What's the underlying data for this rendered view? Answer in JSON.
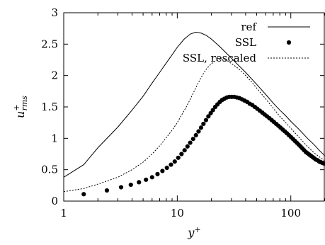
{
  "chart_data": {
    "type": "line",
    "xlabel": "y",
    "xlabel_sup": "+",
    "ylabel": "u",
    "ylabel_sup": "+",
    "ylabel_sub": "rms",
    "x_scale": "log",
    "xlim": [
      1,
      200
    ],
    "ylim": [
      0,
      3
    ],
    "x_ticks": [
      1,
      10,
      100
    ],
    "x_tick_labels": [
      "1",
      "10",
      "100"
    ],
    "y_ticks": [
      0,
      0.5,
      1,
      1.5,
      2,
      2.5,
      3
    ],
    "y_tick_labels": [
      "0",
      "0.5",
      "1",
      "1.5",
      "2",
      "2.5",
      "3"
    ],
    "grid": false,
    "legend_position": "top-right",
    "series": [
      {
        "name": "ref",
        "style": "solid",
        "color": "#000000",
        "points": [
          [
            1,
            0.38
          ],
          [
            1.5,
            0.58
          ],
          [
            2,
            0.85
          ],
          [
            3,
            1.18
          ],
          [
            4,
            1.45
          ],
          [
            5,
            1.67
          ],
          [
            6,
            1.88
          ],
          [
            7,
            2.05
          ],
          [
            8,
            2.2
          ],
          [
            9,
            2.33
          ],
          [
            10,
            2.45
          ],
          [
            11.5,
            2.58
          ],
          [
            13,
            2.66
          ],
          [
            14.5,
            2.69
          ],
          [
            16,
            2.68
          ],
          [
            18,
            2.64
          ],
          [
            20,
            2.58
          ],
          [
            24,
            2.45
          ],
          [
            28,
            2.33
          ],
          [
            33,
            2.2
          ],
          [
            40,
            2.05
          ],
          [
            50,
            1.86
          ],
          [
            60,
            1.7
          ],
          [
            70,
            1.56
          ],
          [
            80,
            1.45
          ],
          [
            90,
            1.36
          ],
          [
            100,
            1.27
          ],
          [
            120,
            1.13
          ],
          [
            140,
            1.0
          ],
          [
            160,
            0.9
          ],
          [
            180,
            0.8
          ],
          [
            200,
            0.72
          ]
        ]
      },
      {
        "name": "SSL",
        "style": "points",
        "color": "#000000",
        "points": [
          [
            1.5,
            0.11
          ],
          [
            2.4,
            0.17
          ],
          [
            3.2,
            0.22
          ],
          [
            3.9,
            0.26
          ],
          [
            4.6,
            0.3
          ],
          [
            5.3,
            0.34
          ],
          [
            6.0,
            0.38
          ],
          [
            6.7,
            0.43
          ],
          [
            7.4,
            0.48
          ],
          [
            8.1,
            0.53
          ],
          [
            8.8,
            0.58
          ],
          [
            9.5,
            0.63
          ],
          [
            10.2,
            0.69
          ],
          [
            10.9,
            0.75
          ],
          [
            11.6,
            0.81
          ],
          [
            12.3,
            0.87
          ],
          [
            13.0,
            0.93
          ],
          [
            13.8,
            0.99
          ],
          [
            14.6,
            1.05
          ],
          [
            15.4,
            1.11
          ],
          [
            16.2,
            1.17
          ],
          [
            17.0,
            1.23
          ],
          [
            17.9,
            1.29
          ],
          [
            18.8,
            1.35
          ],
          [
            19.7,
            1.4
          ],
          [
            20.6,
            1.45
          ],
          [
            21.6,
            1.5
          ],
          [
            22.6,
            1.54
          ],
          [
            23.7,
            1.58
          ],
          [
            24.8,
            1.61
          ],
          [
            26.0,
            1.63
          ],
          [
            27.3,
            1.65
          ],
          [
            28.7,
            1.66
          ],
          [
            30.2,
            1.66
          ],
          [
            31.8,
            1.66
          ],
          [
            33.5,
            1.65
          ],
          [
            35.3,
            1.64
          ],
          [
            37.2,
            1.62
          ],
          [
            39.2,
            1.6
          ],
          [
            41.3,
            1.58
          ],
          [
            43.5,
            1.55
          ],
          [
            45.8,
            1.53
          ],
          [
            48.2,
            1.5
          ],
          [
            50.7,
            1.47
          ],
          [
            53.3,
            1.44
          ],
          [
            56.0,
            1.41
          ],
          [
            58.8,
            1.38
          ],
          [
            61.7,
            1.35
          ],
          [
            64.7,
            1.32
          ],
          [
            67.8,
            1.29
          ],
          [
            71.0,
            1.26
          ],
          [
            74.3,
            1.23
          ],
          [
            77.7,
            1.2
          ],
          [
            81.2,
            1.17
          ],
          [
            84.8,
            1.14
          ],
          [
            88.5,
            1.11
          ],
          [
            92.3,
            1.08
          ],
          [
            96.2,
            1.05
          ],
          [
            100.2,
            1.02
          ],
          [
            104.3,
            0.99
          ],
          [
            108.5,
            0.96
          ],
          [
            112.8,
            0.93
          ],
          [
            117.2,
            0.9
          ],
          [
            121.7,
            0.87
          ],
          [
            126.3,
            0.84
          ],
          [
            131.0,
            0.81
          ],
          [
            135.8,
            0.78
          ],
          [
            140.7,
            0.76
          ],
          [
            145.7,
            0.74
          ],
          [
            150.8,
            0.72
          ],
          [
            156.0,
            0.7
          ],
          [
            161.3,
            0.68
          ],
          [
            166.7,
            0.66
          ],
          [
            172.2,
            0.65
          ],
          [
            177.8,
            0.63
          ],
          [
            183.5,
            0.62
          ],
          [
            189.3,
            0.61
          ],
          [
            195.2,
            0.6
          ],
          [
            200.0,
            0.6
          ]
        ]
      },
      {
        "name": "SSL, rescaled",
        "style": "dotted",
        "color": "#000000",
        "points": [
          [
            1,
            0.15
          ],
          [
            1.5,
            0.2
          ],
          [
            2,
            0.27
          ],
          [
            3,
            0.38
          ],
          [
            4,
            0.5
          ],
          [
            5,
            0.62
          ],
          [
            6,
            0.75
          ],
          [
            7,
            0.88
          ],
          [
            8,
            1.01
          ],
          [
            9,
            1.13
          ],
          [
            10,
            1.25
          ],
          [
            11,
            1.38
          ],
          [
            12,
            1.5
          ],
          [
            13,
            1.62
          ],
          [
            14,
            1.74
          ],
          [
            15,
            1.85
          ],
          [
            16,
            1.95
          ],
          [
            17,
            2.03
          ],
          [
            18,
            2.1
          ],
          [
            19,
            2.15
          ],
          [
            20,
            2.19
          ],
          [
            22,
            2.24
          ],
          [
            24,
            2.26
          ],
          [
            26,
            2.25
          ],
          [
            28,
            2.23
          ],
          [
            30,
            2.19
          ],
          [
            33,
            2.14
          ],
          [
            36,
            2.08
          ],
          [
            40,
            2.0
          ],
          [
            45,
            1.9
          ],
          [
            50,
            1.8
          ],
          [
            60,
            1.63
          ],
          [
            70,
            1.48
          ],
          [
            80,
            1.35
          ],
          [
            90,
            1.25
          ],
          [
            100,
            1.16
          ],
          [
            120,
            1.0
          ],
          [
            140,
            0.87
          ],
          [
            160,
            0.77
          ],
          [
            180,
            0.7
          ],
          [
            200,
            0.64
          ]
        ]
      }
    ]
  }
}
